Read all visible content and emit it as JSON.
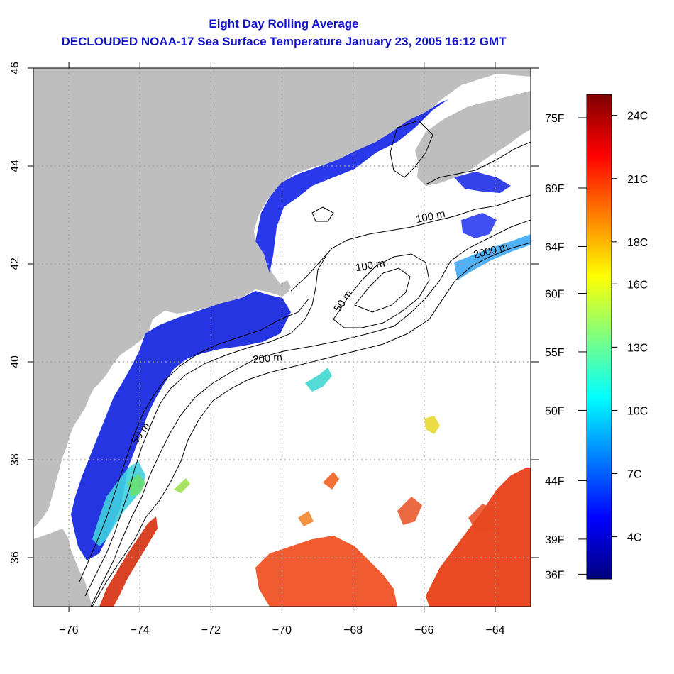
{
  "title_line1": "Eight Day Rolling Average",
  "title_line2": "DECLOUDED NOAA-17 Sea Surface Temperature January 23, 2005 16:12 GMT",
  "map": {
    "lon_range": [
      -77,
      -63
    ],
    "lat_range": [
      35,
      46
    ],
    "lon_ticks": [
      -76,
      -74,
      -72,
      -70,
      -68,
      -66,
      -64
    ],
    "lat_ticks": [
      36,
      38,
      40,
      42,
      44,
      46
    ],
    "lon_tick_labels": [
      "−76",
      "−74",
      "−72",
      "−70",
      "−68",
      "−66",
      "−64"
    ],
    "lat_tick_labels": [
      "36",
      "38",
      "40",
      "42",
      "44",
      "46"
    ],
    "grid": "dotted",
    "land_color": "#bebebe",
    "ocean_no_data_color": "#ffffff",
    "contour_labels": [
      {
        "text": "100 m",
        "lon": -65.8,
        "lat": 42.9
      },
      {
        "text": "2000 m",
        "lon": -64.1,
        "lat": 42.2
      },
      {
        "text": "100 m",
        "lon": -67.5,
        "lat": 41.9
      },
      {
        "text": "50 m",
        "lon": -68.2,
        "lat": 41.2
      },
      {
        "text": "200 m",
        "lon": -70.4,
        "lat": 40.0
      },
      {
        "text": "50 m",
        "lon": -73.9,
        "lat": 38.5
      }
    ]
  },
  "colorbar": {
    "celsius_ticks": [
      {
        "label": "24C",
        "value": 24
      },
      {
        "label": "21C",
        "value": 21
      },
      {
        "label": "18C",
        "value": 18
      },
      {
        "label": "16C",
        "value": 16
      },
      {
        "label": "13C",
        "value": 13
      },
      {
        "label": "10C",
        "value": 10
      },
      {
        "label": "7C",
        "value": 7
      },
      {
        "label": "4C",
        "value": 4
      }
    ],
    "fahrenheit_ticks": [
      {
        "label": "75F",
        "value": 75
      },
      {
        "label": "69F",
        "value": 69
      },
      {
        "label": "64F",
        "value": 64
      },
      {
        "label": "60F",
        "value": 60
      },
      {
        "label": "55F",
        "value": 55
      },
      {
        "label": "50F",
        "value": 50
      },
      {
        "label": "44F",
        "value": 44
      },
      {
        "label": "39F",
        "value": 39
      },
      {
        "label": "36F",
        "value": 36
      }
    ],
    "range_celsius": [
      2,
      25
    ],
    "colors": [
      "#00007f",
      "#0000ff",
      "#007fff",
      "#00ffff",
      "#7fff7f",
      "#ffff00",
      "#ff7f00",
      "#ff0000",
      "#7f0000"
    ]
  }
}
